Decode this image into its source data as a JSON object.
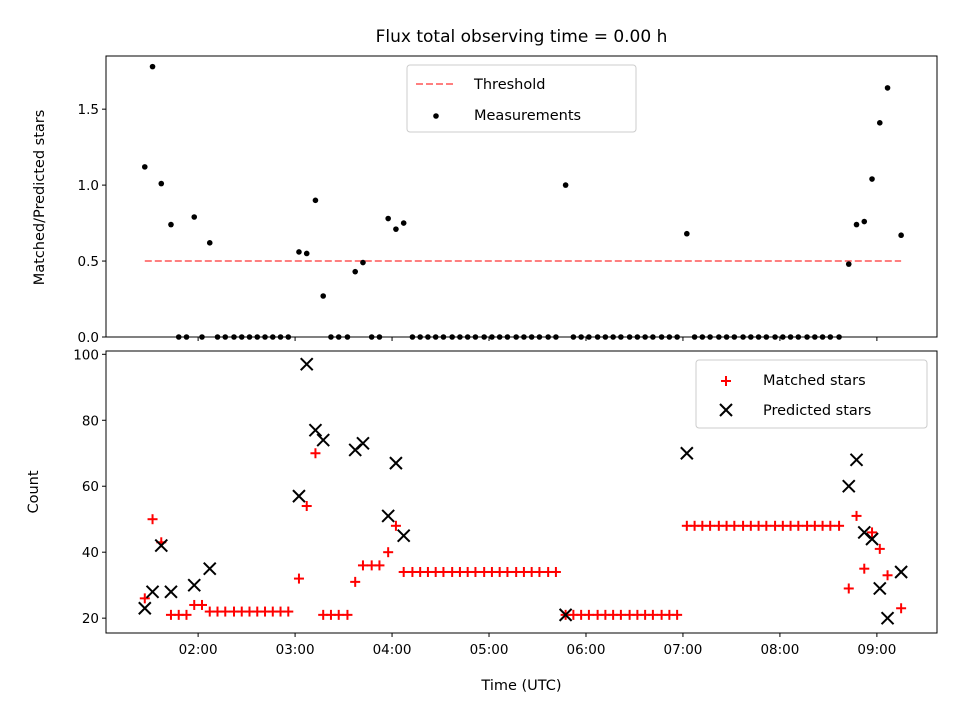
{
  "chart_data": [
    {
      "type": "scatter",
      "title": "Flux total observing time = 0.00 h",
      "xlabel": "",
      "ylabel": "Matched/Predicted stars",
      "xlim": [
        1.05,
        9.62
      ],
      "ylim": [
        0,
        1.85
      ],
      "yticks": [
        0.0,
        0.5,
        1.0,
        1.5
      ],
      "ytick_labels": [
        "0.0",
        "0.5",
        "1.0",
        "1.5"
      ],
      "legend": {
        "position": "top-center",
        "entries": [
          "Threshold",
          "Measurements"
        ]
      },
      "threshold": {
        "name": "Threshold",
        "value": 0.5,
        "x_range": [
          1.45,
          9.25
        ],
        "color": "#ff7f7f",
        "style": "dashed"
      },
      "series": [
        {
          "name": "Measurements",
          "color": "#000000",
          "marker": "dot",
          "x": [
            1.45,
            1.53,
            1.62,
            1.72,
            1.8,
            1.88,
            1.96,
            2.04,
            2.12,
            2.2,
            2.28,
            2.37,
            2.45,
            2.53,
            2.61,
            2.69,
            2.77,
            2.85,
            2.93,
            3.04,
            3.12,
            3.21,
            3.29,
            3.37,
            3.45,
            3.54,
            3.62,
            3.7,
            3.79,
            3.87,
            3.96,
            4.04,
            4.12,
            4.21,
            4.29,
            4.37,
            4.45,
            4.53,
            4.62,
            4.7,
            4.78,
            4.86,
            4.95,
            5.03,
            5.11,
            5.19,
            5.28,
            5.36,
            5.44,
            5.52,
            5.61,
            5.69,
            5.79,
            5.87,
            5.95,
            6.03,
            6.12,
            6.2,
            6.28,
            6.36,
            6.45,
            6.53,
            6.61,
            6.69,
            6.78,
            6.86,
            6.94,
            7.04,
            7.12,
            7.2,
            7.28,
            7.37,
            7.45,
            7.53,
            7.62,
            7.7,
            7.78,
            7.86,
            7.95,
            8.03,
            8.11,
            8.19,
            8.28,
            8.36,
            8.44,
            8.52,
            8.61,
            8.71,
            8.79,
            8.87,
            8.95,
            9.03,
            9.11,
            9.25
          ],
          "y": [
            1.12,
            1.78,
            1.01,
            0.74,
            0.0,
            0.0,
            0.79,
            0.0,
            0.62,
            0.0,
            0.0,
            0.0,
            0.0,
            0.0,
            0.0,
            0.0,
            0.0,
            0.0,
            0.0,
            0.56,
            0.55,
            0.9,
            0.27,
            0.0,
            0.0,
            0.0,
            0.43,
            0.49,
            0.0,
            0.0,
            0.78,
            0.71,
            0.75,
            0.0,
            0.0,
            0.0,
            0.0,
            0.0,
            0.0,
            0.0,
            0.0,
            0.0,
            0.0,
            0.0,
            0.0,
            0.0,
            0.0,
            0.0,
            0.0,
            0.0,
            0.0,
            0.0,
            1.0,
            0.0,
            0.0,
            0.0,
            0.0,
            0.0,
            0.0,
            0.0,
            0.0,
            0.0,
            0.0,
            0.0,
            0.0,
            0.0,
            0.0,
            0.68,
            0.0,
            0.0,
            0.0,
            0.0,
            0.0,
            0.0,
            0.0,
            0.0,
            0.0,
            0.0,
            0.0,
            0.0,
            0.0,
            0.0,
            0.0,
            0.0,
            0.0,
            0.0,
            0.0,
            0.48,
            0.74,
            0.76,
            1.04,
            1.41,
            1.64,
            0.67
          ]
        }
      ]
    },
    {
      "type": "scatter",
      "title": "",
      "xlabel": "Time (UTC)",
      "ylabel": "Count",
      "xlim": [
        1.05,
        9.62
      ],
      "ylim": [
        15.5,
        101
      ],
      "yticks": [
        20,
        40,
        60,
        80,
        100
      ],
      "ytick_labels": [
        "20",
        "40",
        "60",
        "80",
        "100"
      ],
      "xticks": [
        2,
        3,
        4,
        5,
        6,
        7,
        8,
        9
      ],
      "xtick_labels": [
        "02:00",
        "03:00",
        "04:00",
        "05:00",
        "06:00",
        "07:00",
        "08:00",
        "09:00"
      ],
      "legend": {
        "position": "top-right",
        "entries": [
          "Matched stars",
          "Predicted stars"
        ]
      },
      "series": [
        {
          "name": "Matched stars",
          "color": "#ff0000",
          "marker": "plus",
          "x": [
            1.45,
            1.53,
            1.62,
            1.72,
            1.8,
            1.88,
            1.96,
            2.04,
            2.12,
            2.2,
            2.28,
            2.37,
            2.45,
            2.53,
            2.61,
            2.69,
            2.77,
            2.85,
            2.93,
            3.04,
            3.12,
            3.21,
            3.29,
            3.37,
            3.45,
            3.54,
            3.62,
            3.7,
            3.79,
            3.87,
            3.96,
            4.04,
            4.12,
            4.21,
            4.29,
            4.37,
            4.45,
            4.53,
            4.62,
            4.7,
            4.78,
            4.86,
            4.95,
            5.03,
            5.11,
            5.19,
            5.28,
            5.36,
            5.44,
            5.52,
            5.61,
            5.69,
            5.79,
            5.87,
            5.95,
            6.03,
            6.12,
            6.2,
            6.28,
            6.36,
            6.45,
            6.53,
            6.61,
            6.69,
            6.78,
            6.86,
            6.94,
            7.04,
            7.12,
            7.2,
            7.28,
            7.37,
            7.45,
            7.53,
            7.62,
            7.7,
            7.78,
            7.86,
            7.95,
            8.03,
            8.11,
            8.19,
            8.28,
            8.36,
            8.44,
            8.52,
            8.61,
            8.71,
            8.79,
            8.87,
            8.95,
            9.03,
            9.11,
            9.25
          ],
          "y": [
            26,
            50,
            43,
            21,
            21,
            21,
            24,
            24,
            22,
            22,
            22,
            22,
            22,
            22,
            22,
            22,
            22,
            22,
            22,
            32,
            54,
            70,
            21,
            21,
            21,
            21,
            31,
            36,
            36,
            36,
            40,
            48,
            34,
            34,
            34,
            34,
            34,
            34,
            34,
            34,
            34,
            34,
            34,
            34,
            34,
            34,
            34,
            34,
            34,
            34,
            34,
            34,
            21,
            21,
            21,
            21,
            21,
            21,
            21,
            21,
            21,
            21,
            21,
            21,
            21,
            21,
            21,
            48,
            48,
            48,
            48,
            48,
            48,
            48,
            48,
            48,
            48,
            48,
            48,
            48,
            48,
            48,
            48,
            48,
            48,
            48,
            48,
            29,
            51,
            35,
            46,
            41,
            33,
            23
          ]
        },
        {
          "name": "Predicted stars",
          "color": "#000000",
          "marker": "cross",
          "x": [
            1.45,
            1.53,
            1.62,
            1.72,
            1.96,
            2.12,
            3.04,
            3.12,
            3.21,
            3.29,
            3.62,
            3.7,
            3.96,
            4.04,
            4.12,
            5.79,
            7.04,
            8.71,
            8.79,
            8.87,
            8.95,
            9.03,
            9.11,
            9.25
          ],
          "y": [
            23,
            28,
            42,
            28,
            30,
            35,
            57,
            97,
            77,
            74,
            71,
            73,
            51,
            67,
            45,
            21,
            70,
            60,
            68,
            46,
            44,
            29,
            20,
            34
          ]
        }
      ]
    }
  ]
}
